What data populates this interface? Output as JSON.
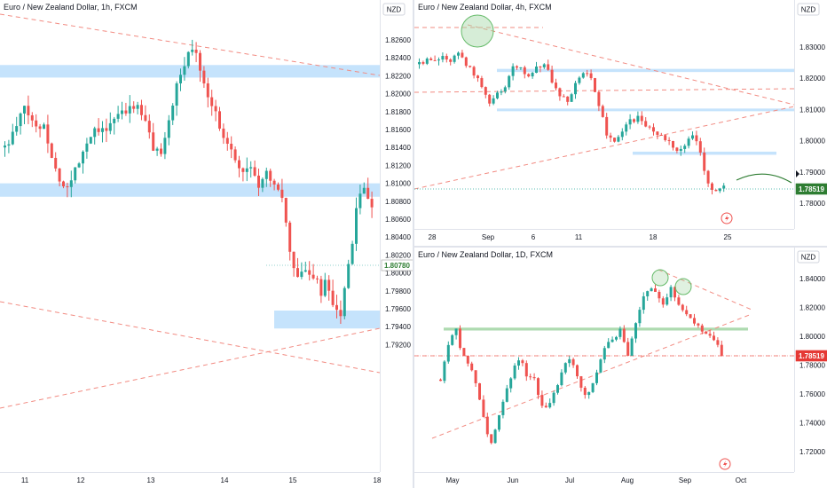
{
  "chart_data": [
    {
      "type": "candlestick",
      "title": "Euro / New Zealand Dollar, 1h, FXCM",
      "currency": "NZD",
      "x_ticks": [
        "11",
        "12",
        "13",
        "14",
        "15",
        "18"
      ],
      "y_ticks": [
        "1.82600",
        "1.82400",
        "1.82200",
        "1.82000",
        "1.81800",
        "1.81600",
        "1.81400",
        "1.81200",
        "1.81000",
        "1.80800",
        "1.80600",
        "1.80400",
        "1.80200",
        "1.80000",
        "1.79800",
        "1.79600",
        "1.79400",
        "1.79200"
      ],
      "ylim": [
        1.7915,
        1.8275
      ],
      "last_price": "1.80780",
      "zones": [
        [
          1.8218,
          1.8232
        ],
        [
          1.8085,
          1.81
        ],
        [
          1.7938,
          1.7958
        ]
      ],
      "anchors": [
        1.814,
        1.815,
        1.8165,
        1.8185,
        1.8172,
        1.816,
        1.8168,
        1.814,
        1.811,
        1.81,
        1.8092,
        1.812,
        1.8135,
        1.815,
        1.8162,
        1.8165,
        1.816,
        1.817,
        1.818,
        1.8175,
        1.819,
        1.8178,
        1.8165,
        1.814,
        1.813,
        1.816,
        1.8185,
        1.8215,
        1.8235,
        1.8252,
        1.824,
        1.8215,
        1.8185,
        1.8175,
        1.815,
        1.8145,
        1.8128,
        1.811,
        1.8125,
        1.8098,
        1.8102,
        1.811,
        1.81,
        1.8082,
        1.8035,
        1.8,
        1.7995,
        1.8005,
        1.7995,
        1.7978,
        1.799,
        1.7955,
        1.7952,
        1.7985,
        1.804,
        1.8085,
        1.8092,
        1.8078
      ]
    },
    {
      "type": "candlestick",
      "title": "Euro / New Zealand Dollar, 4h, FXCM",
      "currency": "NZD",
      "x_ticks": [
        "28",
        "Sep",
        "6",
        "11",
        "18",
        "25"
      ],
      "y_ticks": [
        "1.83000",
        "1.82000",
        "1.81000",
        "1.80000",
        "1.79000",
        "1.78000"
      ],
      "ylim": [
        1.776,
        1.835
      ],
      "last_price": "1.78519",
      "zones": [
        [
          1.822,
          1.823
        ],
        [
          1.8095,
          1.8103
        ],
        [
          1.7955,
          1.7965
        ]
      ],
      "anchors": [
        1.8245,
        1.8262,
        1.8255,
        1.827,
        1.825,
        1.829,
        1.8245,
        1.8215,
        1.817,
        1.812,
        1.815,
        1.8175,
        1.824,
        1.823,
        1.82,
        1.823,
        1.825,
        1.819,
        1.814,
        1.8125,
        1.819,
        1.822,
        1.82,
        1.812,
        1.802,
        1.8,
        1.803,
        1.806,
        1.8075,
        1.805,
        1.8035,
        1.8015,
        1.7995,
        1.796,
        1.7985,
        1.802,
        1.796,
        1.786,
        1.784,
        1.7855
      ]
    },
    {
      "type": "candlestick",
      "title": "Euro / New Zealand Dollar, 1D, FXCM",
      "currency": "NZD",
      "x_ticks": [
        "May",
        "Jun",
        "Jul",
        "Aug",
        "Sep",
        "Oct"
      ],
      "y_ticks": [
        "1.84000",
        "1.82000",
        "1.80000",
        "1.78000",
        "1.76000",
        "1.74000",
        "1.72000"
      ],
      "ylim": [
        1.712,
        1.85
      ],
      "last_price": "1.78519",
      "zones": [
        [
          1.804,
          1.806
        ]
      ],
      "anchors": [
        1.77,
        1.792,
        1.807,
        1.788,
        1.78,
        1.765,
        1.742,
        1.724,
        1.742,
        1.762,
        1.776,
        1.786,
        1.77,
        1.77,
        1.752,
        1.75,
        1.764,
        1.778,
        1.786,
        1.772,
        1.76,
        1.764,
        1.78,
        1.795,
        1.798,
        1.805,
        1.788,
        1.806,
        1.824,
        1.836,
        1.83,
        1.822,
        1.833,
        1.822,
        1.815,
        1.81,
        1.806,
        1.799,
        1.799,
        1.7852
      ]
    }
  ]
}
